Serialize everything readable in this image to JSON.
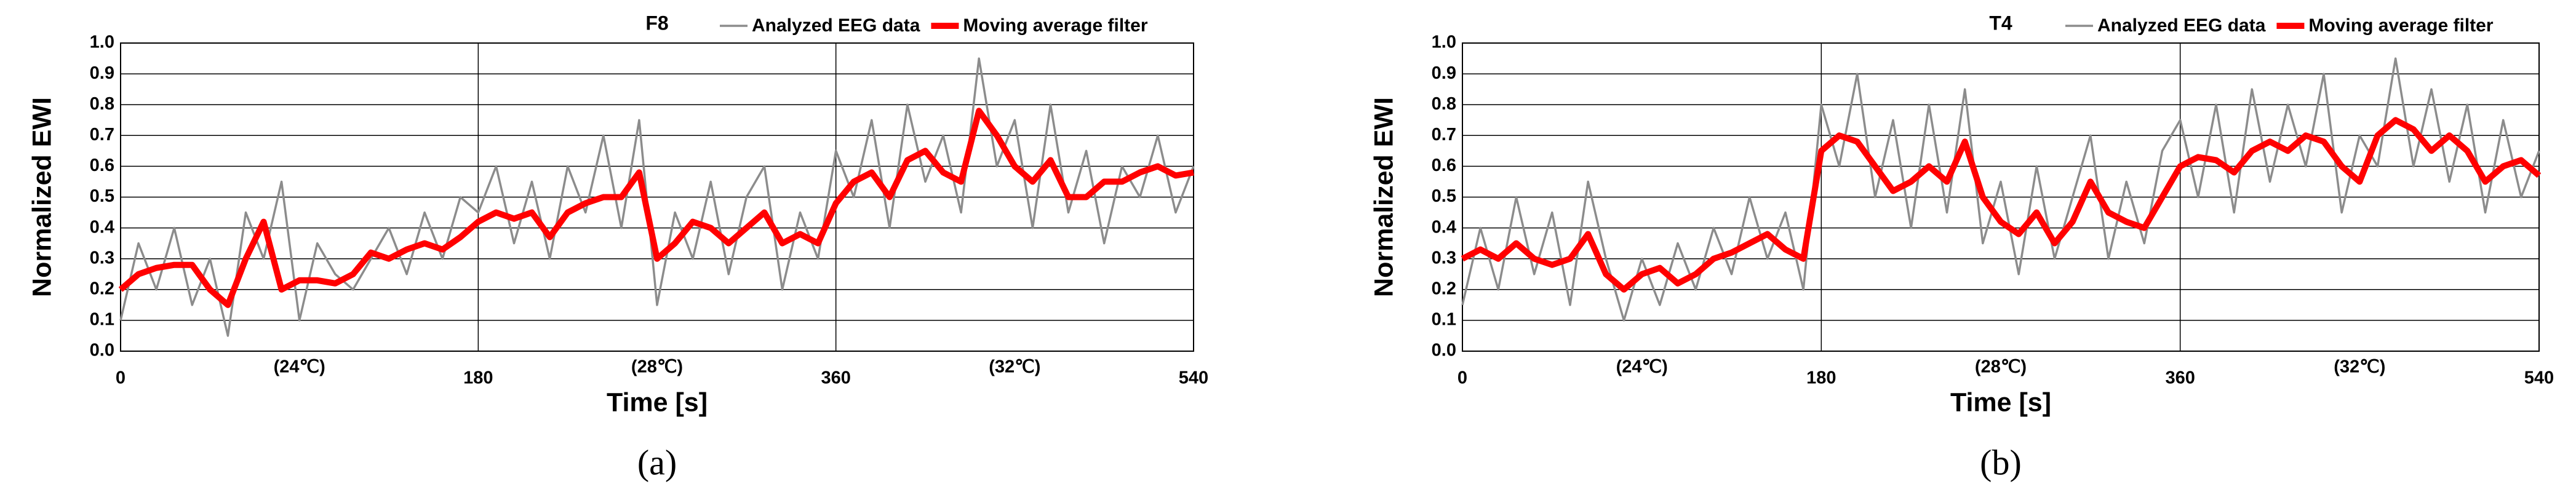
{
  "chart_data": [
    {
      "type": "line",
      "title": "F8",
      "xlabel": "Time [s]",
      "ylabel": "Normalized EWI",
      "annotations": [
        "(24℃)",
        "(28℃)",
        "(32℃)"
      ],
      "panel_label": "(a)",
      "x": [
        0,
        9,
        18,
        27,
        36,
        45,
        54,
        63,
        72,
        81,
        90,
        99,
        108,
        117,
        126,
        135,
        144,
        153,
        162,
        171,
        180,
        189,
        198,
        207,
        216,
        225,
        234,
        243,
        252,
        261,
        270,
        279,
        288,
        297,
        306,
        315,
        324,
        333,
        342,
        351,
        360,
        369,
        378,
        387,
        396,
        405,
        414,
        423,
        432,
        441,
        450,
        459,
        468,
        477,
        486,
        495,
        504,
        513,
        522,
        531,
        540
      ],
      "series": [
        {
          "name": "Analyzed EEG data",
          "color": "#8c8c8c",
          "values": [
            0.1,
            0.35,
            0.2,
            0.4,
            0.15,
            0.3,
            0.05,
            0.45,
            0.3,
            0.55,
            0.1,
            0.35,
            0.25,
            0.2,
            0.3,
            0.4,
            0.25,
            0.45,
            0.3,
            0.5,
            0.45,
            0.6,
            0.35,
            0.55,
            0.3,
            0.6,
            0.45,
            0.7,
            0.4,
            0.75,
            0.15,
            0.45,
            0.3,
            0.55,
            0.25,
            0.5,
            0.6,
            0.2,
            0.45,
            0.3,
            0.65,
            0.5,
            0.75,
            0.4,
            0.8,
            0.55,
            0.7,
            0.45,
            0.95,
            0.6,
            0.75,
            0.4,
            0.8,
            0.45,
            0.65,
            0.35,
            0.6,
            0.5,
            0.7,
            0.45,
            0.6
          ]
        },
        {
          "name": "Moving average filter",
          "color": "#ff0000",
          "values": [
            0.2,
            0.25,
            0.27,
            0.28,
            0.28,
            0.2,
            0.15,
            0.3,
            0.42,
            0.2,
            0.23,
            0.23,
            0.22,
            0.25,
            0.32,
            0.3,
            0.33,
            0.35,
            0.33,
            0.37,
            0.42,
            0.45,
            0.43,
            0.45,
            0.37,
            0.45,
            0.48,
            0.5,
            0.5,
            0.58,
            0.3,
            0.35,
            0.42,
            0.4,
            0.35,
            0.4,
            0.45,
            0.35,
            0.38,
            0.35,
            0.48,
            0.55,
            0.58,
            0.5,
            0.62,
            0.65,
            0.58,
            0.55,
            0.78,
            0.7,
            0.6,
            0.55,
            0.62,
            0.5,
            0.5,
            0.55,
            0.55,
            0.58,
            0.6,
            0.57,
            0.58
          ]
        }
      ],
      "xlim": [
        0,
        540
      ],
      "xticks": [
        0,
        180,
        360,
        540
      ],
      "ylim": [
        0,
        1
      ],
      "yticks": [
        {
          "value": 0,
          "label": "0.0"
        },
        0.1,
        0.2,
        0.3,
        0.4,
        0.5,
        0.6,
        0.7,
        0.8,
        0.9,
        {
          "value": 1,
          "label": "1.0"
        }
      ],
      "grid": true,
      "legend": "top-right"
    },
    {
      "type": "line",
      "title": "T4",
      "xlabel": "Time [s]",
      "ylabel": "Normalized EWI",
      "annotations": [
        "(24℃)",
        "(28℃)",
        "(32℃)"
      ],
      "panel_label": "(b)",
      "x": [
        0,
        9,
        18,
        27,
        36,
        45,
        54,
        63,
        72,
        81,
        90,
        99,
        108,
        117,
        126,
        135,
        144,
        153,
        162,
        171,
        180,
        189,
        198,
        207,
        216,
        225,
        234,
        243,
        252,
        261,
        270,
        279,
        288,
        297,
        306,
        315,
        324,
        333,
        342,
        351,
        360,
        369,
        378,
        387,
        396,
        405,
        414,
        423,
        432,
        441,
        450,
        459,
        468,
        477,
        486,
        495,
        504,
        513,
        522,
        531,
        540
      ],
      "series": [
        {
          "name": "Analyzed EEG data",
          "color": "#8c8c8c",
          "values": [
            0.15,
            0.4,
            0.2,
            0.5,
            0.25,
            0.45,
            0.15,
            0.55,
            0.3,
            0.1,
            0.3,
            0.15,
            0.35,
            0.2,
            0.4,
            0.25,
            0.5,
            0.3,
            0.45,
            0.2,
            0.8,
            0.6,
            0.9,
            0.5,
            0.75,
            0.4,
            0.8,
            0.45,
            0.85,
            0.35,
            0.55,
            0.25,
            0.6,
            0.3,
            0.5,
            0.7,
            0.3,
            0.55,
            0.35,
            0.65,
            0.75,
            0.5,
            0.8,
            0.45,
            0.85,
            0.55,
            0.8,
            0.6,
            0.9,
            0.45,
            0.7,
            0.6,
            0.95,
            0.6,
            0.85,
            0.55,
            0.8,
            0.45,
            0.75,
            0.5,
            0.65
          ]
        },
        {
          "name": "Moving average filter",
          "color": "#ff0000",
          "values": [
            0.3,
            0.33,
            0.3,
            0.35,
            0.3,
            0.28,
            0.3,
            0.38,
            0.25,
            0.2,
            0.25,
            0.27,
            0.22,
            0.25,
            0.3,
            0.32,
            0.35,
            0.38,
            0.33,
            0.3,
            0.65,
            0.7,
            0.68,
            0.6,
            0.52,
            0.55,
            0.6,
            0.55,
            0.68,
            0.5,
            0.42,
            0.38,
            0.45,
            0.35,
            0.42,
            0.55,
            0.45,
            0.42,
            0.4,
            0.5,
            0.6,
            0.63,
            0.62,
            0.58,
            0.65,
            0.68,
            0.65,
            0.7,
            0.68,
            0.6,
            0.55,
            0.7,
            0.75,
            0.72,
            0.65,
            0.7,
            0.65,
            0.55,
            0.6,
            0.62,
            0.57
          ]
        }
      ],
      "xlim": [
        0,
        540
      ],
      "xticks": [
        0,
        180,
        360,
        540
      ],
      "ylim": [
        0,
        1
      ],
      "yticks": [
        {
          "value": 0,
          "label": "0.0"
        },
        0.1,
        0.2,
        0.3,
        0.4,
        0.5,
        0.6,
        0.7,
        0.8,
        0.9,
        {
          "value": 1,
          "label": "1.0"
        }
      ],
      "grid": true,
      "legend": "top-right"
    }
  ]
}
